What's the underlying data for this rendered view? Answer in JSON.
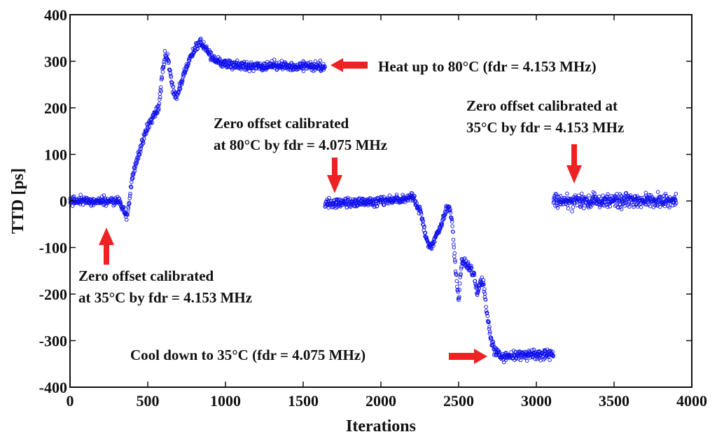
{
  "chart_data": {
    "type": "scatter",
    "title": "",
    "xlabel": "Iterations",
    "ylabel": "TTD [ps]",
    "xlim": [
      0,
      4000
    ],
    "ylim": [
      -400,
      400
    ],
    "xticks": [
      "0",
      "500",
      "1000",
      "1500",
      "2000",
      "2500",
      "3000",
      "3500",
      "4000"
    ],
    "yticks": [
      "400",
      "300",
      "200",
      "100",
      "0",
      "-100",
      "-200",
      "-300",
      "-400"
    ],
    "grid": false,
    "marker_color": "#1010ee",
    "arrow_color": "#ee2222",
    "series": [
      {
        "segments": [
          {
            "points": [
              [
                0,
                0
              ],
              [
                320,
                0
              ],
              [
                340,
                -15
              ],
              [
                360,
                -35
              ],
              [
                380,
                -10
              ],
              [
                400,
                50
              ],
              [
                440,
                100
              ],
              [
                470,
                130
              ],
              [
                500,
                160
              ],
              [
                540,
                185
              ],
              [
                570,
                200
              ],
              [
                590,
                260
              ],
              [
                610,
                310
              ],
              [
                630,
                305
              ],
              [
                660,
                240
              ],
              [
                680,
                220
              ],
              [
                720,
                260
              ],
              [
                760,
                300
              ],
              [
                800,
                325
              ],
              [
                840,
                340
              ],
              [
                880,
                325
              ],
              [
                920,
                305
              ],
              [
                960,
                300
              ],
              [
                1000,
                295
              ],
              [
                1100,
                290
              ],
              [
                1300,
                290
              ],
              [
                1500,
                290
              ],
              [
                1640,
                290
              ]
            ]
          },
          {
            "points": [
              [
                1640,
                -5
              ],
              [
                1800,
                -5
              ],
              [
                2000,
                0
              ],
              [
                2150,
                5
              ],
              [
                2200,
                10
              ],
              [
                2230,
                -10
              ],
              [
                2260,
                -30
              ],
              [
                2290,
                -80
              ],
              [
                2320,
                -100
              ],
              [
                2350,
                -80
              ],
              [
                2390,
                -50
              ],
              [
                2420,
                -20
              ],
              [
                2440,
                -10
              ],
              [
                2460,
                -50
              ],
              [
                2480,
                -150
              ],
              [
                2500,
                -210
              ],
              [
                2520,
                -130
              ],
              [
                2560,
                -140
              ],
              [
                2600,
                -160
              ],
              [
                2620,
                -200
              ],
              [
                2640,
                -170
              ],
              [
                2660,
                -180
              ],
              [
                2690,
                -260
              ],
              [
                2710,
                -300
              ],
              [
                2730,
                -320
              ],
              [
                2760,
                -330
              ],
              [
                2800,
                -335
              ],
              [
                2900,
                -330
              ],
              [
                3000,
                -330
              ],
              [
                3110,
                -330
              ]
            ]
          },
          {
            "points": [
              [
                3110,
                0
              ],
              [
                3300,
                0
              ],
              [
                3500,
                0
              ],
              [
                3700,
                0
              ],
              [
                3900,
                0
              ]
            ]
          }
        ]
      }
    ],
    "annotations": [
      {
        "lines": [
          "Heat up to 80°C (fdr = 4.153 MHz)"
        ]
      },
      {
        "lines": [
          "Zero offset calibrated",
          "at 80°C by fdr = 4.075 MHz"
        ]
      },
      {
        "lines": [
          "Zero offset calibrated at",
          "35°C by  fdr = 4.153 MHz"
        ]
      },
      {
        "lines": [
          "Zero offset calibrated",
          "at 35°C by fdr = 4.153 MHz"
        ]
      },
      {
        "lines": [
          "Cool down to 35°C (fdr = 4.075 MHz)"
        ]
      }
    ]
  }
}
